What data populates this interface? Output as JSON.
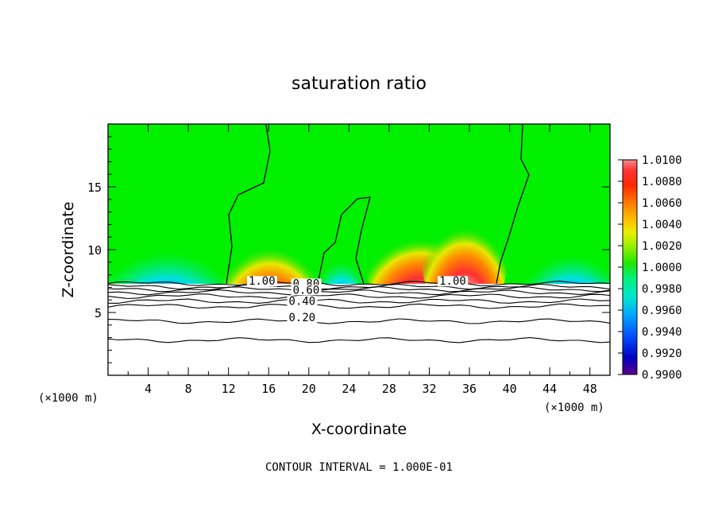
{
  "chart_data": {
    "type": "heatmap",
    "title": "saturation ratio",
    "xlabel": "X-coordinate",
    "ylabel": "Z-coordinate",
    "x_unit": "(×1000 m)",
    "xlim": [
      0,
      50
    ],
    "ylim": [
      0,
      20
    ],
    "x_ticks": [
      4,
      8,
      12,
      16,
      20,
      24,
      28,
      32,
      36,
      40,
      44,
      48
    ],
    "y_ticks": [
      5,
      10,
      15
    ],
    "footer": "CONTOUR INTERVAL = 1.000E-01",
    "colorbar": {
      "levels": [
        "1.0100",
        "1.0080",
        "1.0060",
        "1.0040",
        "1.0020",
        "1.0000",
        "0.9980",
        "0.9960",
        "0.9940",
        "0.9920",
        "0.9900"
      ],
      "colors": [
        "#f08a8a",
        "#ff3333",
        "#ff2a00",
        "#ff7a00",
        "#ffbf00",
        "#e6f000",
        "#22e600",
        "#00f07a",
        "#00e6e0",
        "#0078ff",
        "#0000c0",
        "#500090"
      ]
    },
    "contour_labels": [
      {
        "text": "1.00",
        "x": 14.0,
        "z": 7.2
      },
      {
        "text": "0.80",
        "x": 18.4,
        "z": 7.0
      },
      {
        "text": "0.60",
        "x": 18.4,
        "z": 6.5
      },
      {
        "text": "0.40",
        "x": 18.0,
        "z": 5.6
      },
      {
        "text": "0.20",
        "x": 18.0,
        "z": 4.3
      },
      {
        "text": "1.00",
        "x": 33.0,
        "z": 7.2
      }
    ],
    "ground_contours_z": [
      7.3,
      7.05,
      6.85,
      6.6,
      6.3,
      5.9,
      5.5,
      4.3,
      2.8
    ]
  }
}
